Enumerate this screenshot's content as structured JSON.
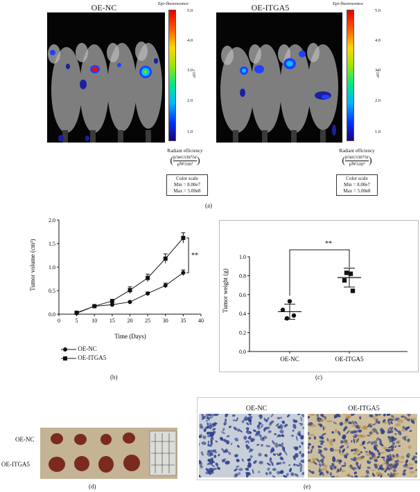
{
  "panel_a": {
    "left_title": "OE-NC",
    "right_title": "OE-ITGA5",
    "colorbar_title": "Epi-fluorescence",
    "colorbar_ticks": [
      "5.0",
      "4.0",
      "3.0",
      "2.0",
      "1.0"
    ],
    "colorbar_exponent": "×10⁸",
    "radiant_label": "Radiant efficiency",
    "radiant_units_top": "p/sec/cm²/sr",
    "radiant_units_bottom": "μW/cm²",
    "color_scale_title": "Color scale",
    "color_scale_min": "Min = 8.00e7",
    "color_scale_max": "Max = 5.00e8",
    "colormap": [
      "#1a0080",
      "#0033ff",
      "#00b4ff",
      "#00e68a",
      "#9ae600",
      "#ffd400",
      "#ff5a00",
      "#e60000"
    ],
    "label": "(a)"
  },
  "panel_b_legend": {
    "series1": "OE-NC",
    "series2": "OE-ITGA5",
    "label": "(b)"
  },
  "panel_c_label": "(c)",
  "panel_d": {
    "row1": "OE-NC",
    "row2": "OE-ITGA5",
    "label": "(d)"
  },
  "panel_e": {
    "left_title": "OE-NC",
    "right_title": "OE-ITGA5",
    "label": "(e)"
  },
  "chart_data": [
    {
      "type": "line",
      "xlabel": "Time (Days)",
      "ylabel": "Tumor volume (cm³)",
      "xlim": [
        0,
        40
      ],
      "ylim": [
        0,
        2.0
      ],
      "xticks": [
        "0",
        "5",
        "10",
        "15",
        "20",
        "25",
        "30",
        "35",
        "40"
      ],
      "yticks": [
        "0.0",
        "0.5",
        "1.0",
        "1.5",
        "2.0"
      ],
      "significance": "**",
      "series": [
        {
          "name": "OE-NC",
          "marker": "circle",
          "x": [
            5,
            10,
            15,
            20,
            25,
            30,
            35
          ],
          "y": [
            0.02,
            0.17,
            0.2,
            0.26,
            0.44,
            0.61,
            0.88
          ],
          "err": [
            0.01,
            0.02,
            0.02,
            0.02,
            0.03,
            0.05,
            0.06
          ]
        },
        {
          "name": "OE-ITGA5",
          "marker": "square",
          "x": [
            5,
            10,
            15,
            20,
            25,
            30,
            35
          ],
          "y": [
            0.03,
            0.17,
            0.28,
            0.51,
            0.77,
            1.18,
            1.62
          ],
          "err": [
            0.01,
            0.02,
            0.03,
            0.07,
            0.08,
            0.1,
            0.11
          ]
        }
      ]
    },
    {
      "type": "scatter",
      "ylabel": "Tumor weight (g)",
      "categories": [
        "OE-NC",
        "OE-ITGA5"
      ],
      "ylim": [
        0,
        1.0
      ],
      "yticks": [
        "0.0",
        "0.2",
        "0.4",
        "0.6",
        "0.8",
        "1.0"
      ],
      "significance": "**",
      "series": [
        {
          "name": "OE-NC",
          "points": [
            0.53,
            0.44,
            0.38,
            0.35
          ],
          "mean": 0.42,
          "sd": 0.08
        },
        {
          "name": "OE-ITGA5",
          "points": [
            0.83,
            0.82,
            0.75,
            0.64
          ],
          "mean": 0.78,
          "sd": 0.1
        }
      ]
    }
  ]
}
